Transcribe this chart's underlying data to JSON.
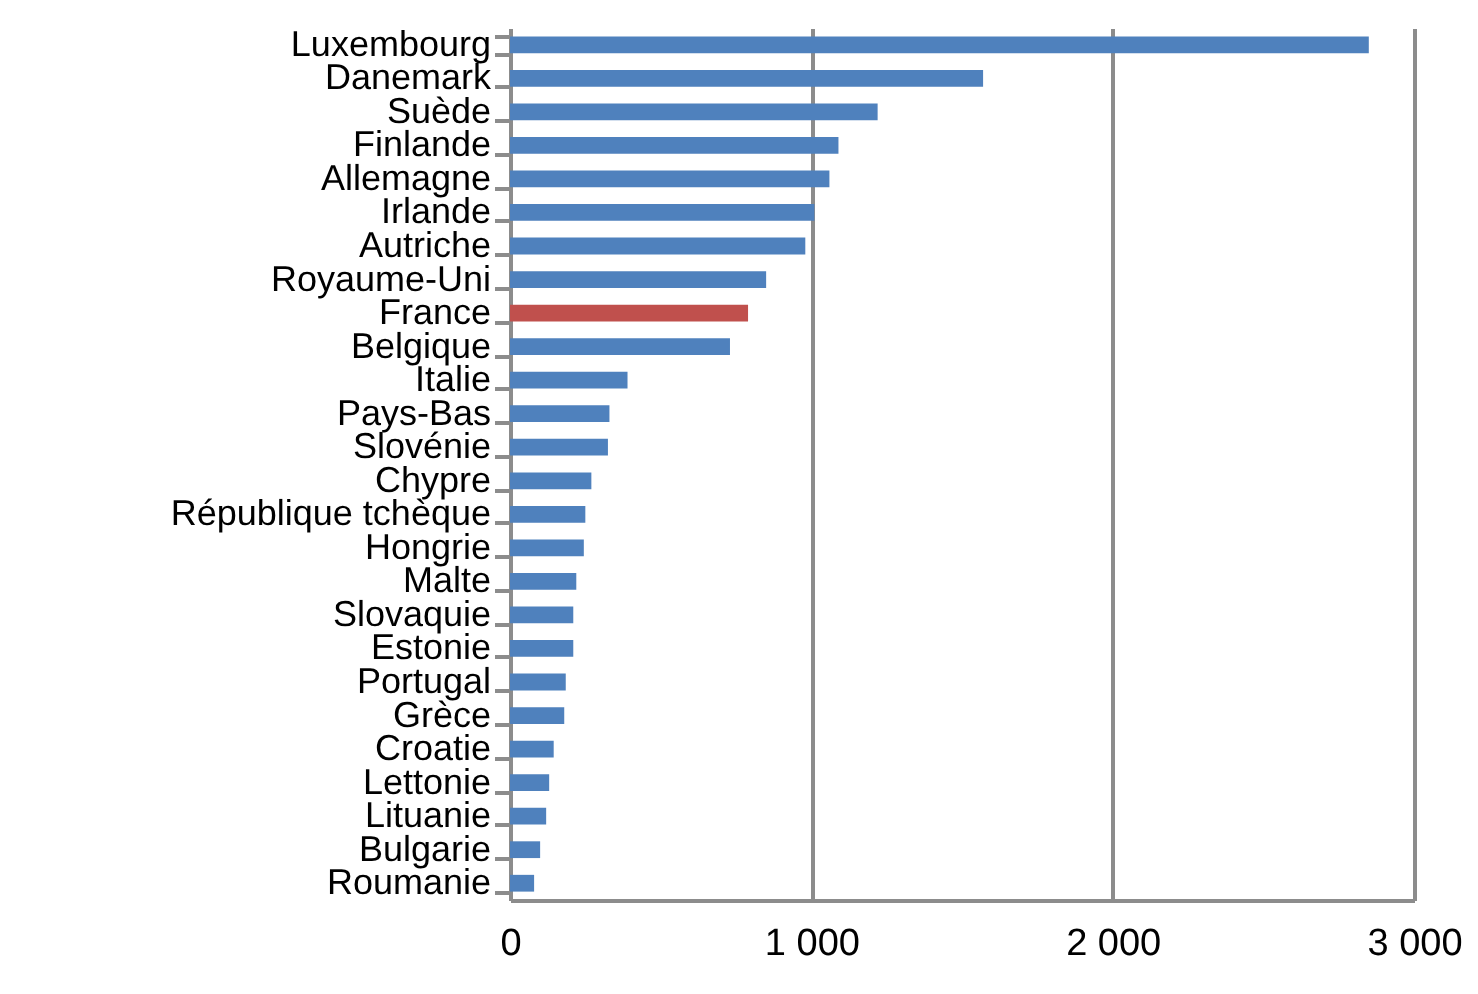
{
  "chart_data": {
    "type": "bar",
    "orientation": "horizontal",
    "categories": [
      "Luxembourg",
      "Danemark",
      "Suède",
      "Finlande",
      "Allemagne",
      "Irlande",
      "Autriche",
      "Royaume-Uni",
      "France",
      "Belgique",
      "Italie",
      "Pays-Bas",
      "Slovénie",
      "Chypre",
      "République tchèque",
      "Hongrie",
      "Malte",
      "Slovaquie",
      "Estonie",
      "Portugal",
      "Grèce",
      "Croatie",
      "Lettonie",
      "Lituanie",
      "Bulgarie",
      "Roumanie"
    ],
    "values": [
      2850,
      1570,
      1220,
      1090,
      1060,
      1010,
      980,
      850,
      790,
      730,
      390,
      330,
      325,
      270,
      250,
      245,
      220,
      210,
      210,
      185,
      180,
      145,
      130,
      120,
      100,
      80
    ],
    "colors": [
      "#4f81bd",
      "#4f81bd",
      "#4f81bd",
      "#4f81bd",
      "#4f81bd",
      "#4f81bd",
      "#4f81bd",
      "#4f81bd",
      "#c0504d",
      "#4f81bd",
      "#4f81bd",
      "#4f81bd",
      "#4f81bd",
      "#4f81bd",
      "#4f81bd",
      "#4f81bd",
      "#4f81bd",
      "#4f81bd",
      "#4f81bd",
      "#4f81bd",
      "#4f81bd",
      "#4f81bd",
      "#4f81bd",
      "#4f81bd",
      "#4f81bd",
      "#4f81bd"
    ],
    "xlim": [
      0,
      3000
    ],
    "xticks": [
      0,
      {
        "value": 1000,
        "label": "1 000"
      },
      {
        "value": 2000,
        "label": "2 000"
      },
      {
        "value": 3000,
        "label": "3 000"
      }
    ],
    "grid": "x"
  }
}
